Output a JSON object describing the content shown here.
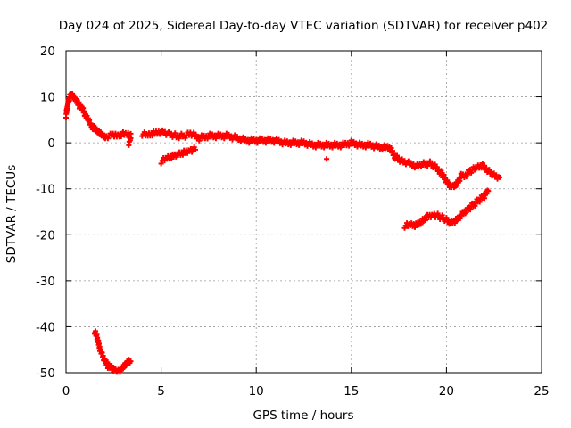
{
  "chart_data": {
    "type": "scatter",
    "title": "Day 024 of 2025, Sidereal Day-to-day VTEC variation (SDTVAR) for receiver p402",
    "xlabel": "GPS time / hours",
    "ylabel": "SDTVAR / TECUs",
    "xlim": [
      0,
      25
    ],
    "ylim": [
      -50,
      20
    ],
    "xticks": [
      "0",
      "5",
      "10",
      "15",
      "20",
      "25"
    ],
    "yticks": [
      "20",
      "10",
      "0",
      "-10",
      "-20",
      "-30",
      "-40",
      "-50"
    ],
    "grid": true,
    "marker": "plus",
    "series_color": "#ff0000",
    "series": [
      {
        "segments": [
          {
            "x": [
              0.0,
              0.1,
              0.2,
              0.3,
              0.4,
              0.5,
              0.6,
              0.7,
              0.8,
              0.9,
              1.0,
              1.1,
              1.2,
              1.3,
              1.4,
              1.5,
              1.6,
              1.7,
              1.8,
              1.9,
              2.0,
              2.2,
              2.4,
              2.6,
              2.8,
              3.0,
              3.2,
              3.4
            ],
            "y": [
              6.0,
              8.5,
              10.0,
              10.5,
              10.0,
              9.5,
              9.0,
              8.0,
              7.5,
              7.0,
              6.0,
              5.5,
              5.0,
              4.0,
              3.5,
              3.0,
              2.5,
              2.5,
              2.0,
              2.0,
              1.5,
              1.5,
              1.5,
              1.5,
              1.5,
              2.0,
              2.0,
              2.0
            ]
          },
          {
            "x": [
              3.3,
              3.4
            ],
            "y": [
              0.0,
              1.0
            ]
          },
          {
            "x": [
              4.0,
              4.3,
              4.6,
              5.0,
              5.4,
              5.8,
              6.2,
              6.6,
              7.0
            ],
            "y": [
              2.0,
              1.5,
              2.0,
              2.5,
              2.0,
              1.5,
              1.5,
              2.0,
              1.0
            ]
          },
          {
            "x": [
              5.0,
              5.3,
              5.6,
              5.9,
              6.2,
              6.5,
              6.8
            ],
            "y": [
              -4.0,
              -3.5,
              -3.0,
              -2.5,
              -2.0,
              -1.5,
              -1.5
            ]
          },
          {
            "x": [
              7.0,
              7.5,
              8.0,
              8.5,
              9.0,
              9.5,
              10.0,
              10.5,
              11.0,
              11.5,
              12.0,
              12.5,
              13.0,
              13.5,
              14.0,
              14.5,
              15.0,
              15.5,
              16.0,
              16.5,
              17.0,
              17.3,
              17.6,
              18.0,
              18.4,
              18.8,
              19.2,
              19.6,
              19.8,
              20.0,
              20.2,
              20.4,
              20.6,
              20.8,
              21.0,
              21.3,
              21.6,
              21.9,
              22.2,
              22.5,
              22.8
            ],
            "y": [
              1.0,
              1.5,
              1.5,
              1.5,
              1.0,
              0.5,
              0.5,
              0.5,
              0.5,
              0.0,
              0.0,
              0.0,
              -0.5,
              -0.5,
              -0.5,
              -0.5,
              0.0,
              -0.5,
              -0.5,
              -1.0,
              -1.0,
              -3.0,
              -4.0,
              -4.5,
              -5.0,
              -4.5,
              -4.5,
              -6.0,
              -7.0,
              -8.5,
              -9.5,
              -9.5,
              -8.5,
              -7.0,
              -7.0,
              -6.0,
              -5.5,
              -5.0,
              -6.0,
              -7.0,
              -7.5
            ]
          },
          {
            "x": [
              13.7
            ],
            "y": [
              -3.5
            ]
          },
          {
            "x": [
              17.8,
              18.1,
              18.4,
              18.7,
              19.0,
              19.3,
              19.6,
              19.9,
              20.2,
              20.5,
              20.8,
              21.1,
              21.4,
              21.7,
              22.0,
              22.2
            ],
            "y": [
              -18.0,
              -18.0,
              -18.0,
              -17.0,
              -16.0,
              -15.5,
              -16.0,
              -16.5,
              -17.5,
              -17.0,
              -15.5,
              -14.5,
              -13.5,
              -12.5,
              -11.5,
              -10.5
            ]
          },
          {
            "x": [
              1.5,
              1.6,
              1.7,
              1.8,
              1.9,
              2.0,
              2.1,
              2.2,
              2.3,
              2.4,
              2.5,
              2.6,
              2.7,
              2.8,
              2.9,
              3.0,
              3.1,
              3.2,
              3.3,
              3.4
            ],
            "y": [
              -41.0,
              -42.0,
              -43.5,
              -45.0,
              -46.0,
              -47.0,
              -47.5,
              -48.5,
              -49.0,
              -49.0,
              -49.5,
              -49.5,
              -49.5,
              -49.5,
              -49.0,
              -49.0,
              -48.5,
              -48.0,
              -47.5,
              -47.5
            ]
          }
        ]
      }
    ]
  }
}
